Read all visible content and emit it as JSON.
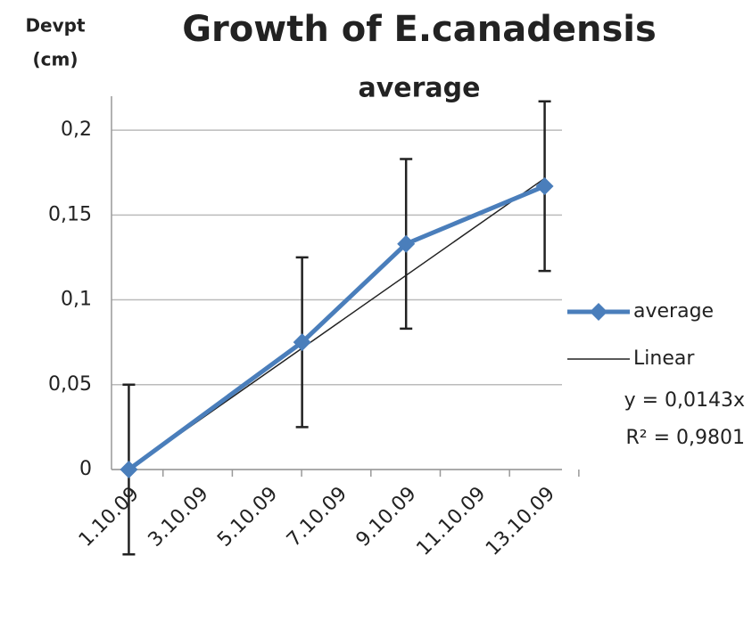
{
  "chart_data": {
    "type": "line",
    "title": "Growth of E.canadensis",
    "subtitle": "average",
    "y_label": [
      "Devpt",
      "(cm)"
    ],
    "x": [
      "1.10.09",
      "6.10.09",
      "9.10.09",
      "13.10.09"
    ],
    "xticks": [
      "1.10.09",
      "3.10.09",
      "5.10.09",
      "7.10.09",
      "9.10.09",
      "11.10.09",
      "13.10.09"
    ],
    "ylim": [
      0,
      0.22
    ],
    "yticks": [
      0,
      {
        "value": 0.05,
        "label": "0,05"
      },
      {
        "value": 0.1,
        "label": "0,1"
      },
      {
        "value": 0.15,
        "label": "0,15"
      },
      {
        "value": 0.2,
        "label": "0,2"
      }
    ],
    "grid": true,
    "series": [
      {
        "name": "average",
        "color": "#4a7ebb",
        "values": [
          0,
          0.075,
          0.133,
          0.167
        ],
        "errors": [
          0.05,
          0.05,
          0.05,
          0.05
        ]
      }
    ],
    "trendline": {
      "name": "Linear",
      "slope": 0.0143,
      "equation": "y = 0,0143x",
      "r2": "R² = 0,9801"
    },
    "legend": "right"
  }
}
